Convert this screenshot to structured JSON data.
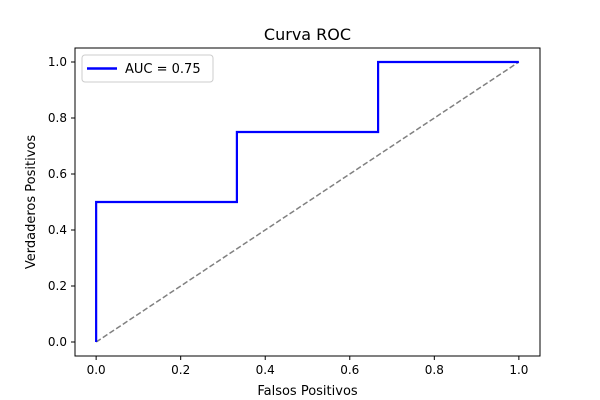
{
  "chart_data": {
    "type": "line",
    "title": "Curva ROC",
    "xlabel": "Falsos Positivos",
    "ylabel": "Verdaderos Positivos",
    "xlim": [
      -0.05,
      1.05
    ],
    "ylim": [
      -0.05,
      1.05
    ],
    "xticks": [
      0.0,
      0.2,
      0.4,
      0.6,
      0.8,
      1.0
    ],
    "xtick_labels": [
      "0.0",
      "0.2",
      "0.4",
      "0.6",
      "0.8",
      "1.0"
    ],
    "yticks": [
      0.0,
      0.2,
      0.4,
      0.6,
      0.8,
      1.0
    ],
    "ytick_labels": [
      "0.0",
      "0.2",
      "0.4",
      "0.6",
      "0.8",
      "1.0"
    ],
    "grid": false,
    "legend_position": "top-left",
    "series": [
      {
        "name": "AUC = 0.75",
        "color": "#0000ff",
        "style": "solid",
        "x": [
          0.0,
          0.0,
          0.333,
          0.333,
          0.667,
          0.667,
          1.0
        ],
        "y": [
          0.0,
          0.5,
          0.5,
          0.75,
          0.75,
          1.0,
          1.0
        ]
      },
      {
        "color": "#808080",
        "style": "dashed",
        "x": [
          0.0,
          1.0
        ],
        "y": [
          0.0,
          1.0
        ]
      }
    ]
  }
}
